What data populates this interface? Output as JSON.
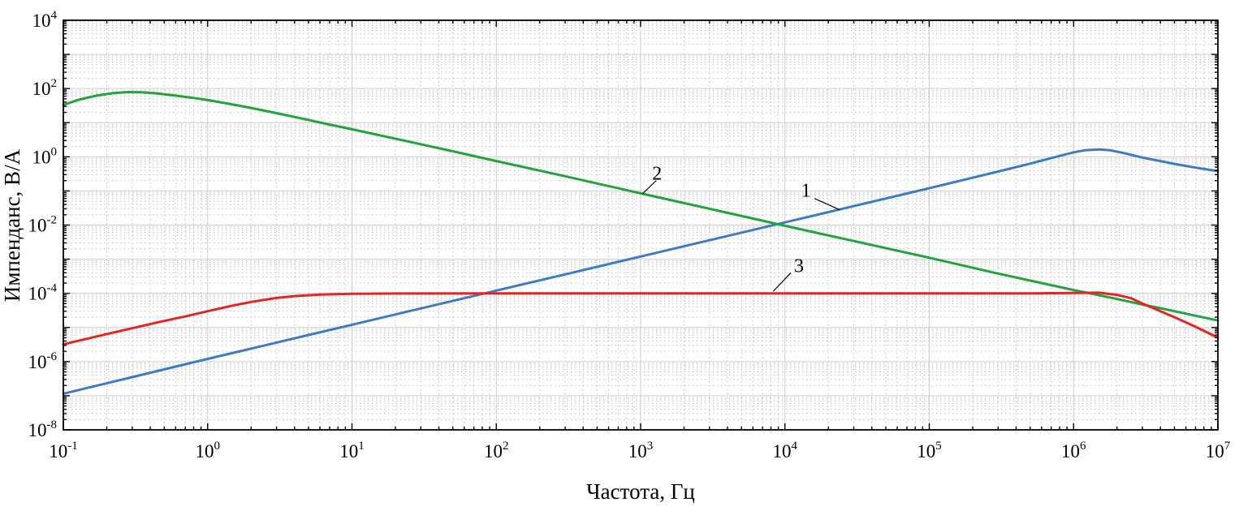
{
  "chart_data": {
    "type": "line",
    "title": "",
    "xlabel": "Частота, Гц",
    "ylabel": "Импенданс, В/А",
    "xscale": "log",
    "yscale": "log",
    "x_range_exp": [
      -1,
      7
    ],
    "y_range_exp": [
      -8,
      4
    ],
    "x_tick_exponents": [
      -1,
      0,
      1,
      2,
      3,
      4,
      5,
      6,
      7
    ],
    "y_tick_exponents": [
      -8,
      -6,
      -4,
      -2,
      0,
      2,
      4
    ],
    "grid": {
      "major": true,
      "minor": true,
      "major_color": "#cdcdcd",
      "minor_color": "#bfbfbf"
    },
    "axis_color": "#000000",
    "series": [
      {
        "name": "1",
        "description": "inductive impedance rising with frequency, self-resonance near 1.5e6 Hz",
        "color": "#3d7bc4",
        "points": [
          [
            0.1,
            1.15e-07
          ],
          [
            0.3,
            3.5e-07
          ],
          [
            1,
            1.2e-06
          ],
          [
            3,
            3.6e-06
          ],
          [
            10,
            1.2e-05
          ],
          [
            30,
            3.6e-05
          ],
          [
            100,
            0.00012
          ],
          [
            300,
            0.00036
          ],
          [
            1000,
            0.0012
          ],
          [
            3000,
            0.0036
          ],
          [
            10000,
            0.012
          ],
          [
            30000,
            0.036
          ],
          [
            100000,
            0.12
          ],
          [
            300000,
            0.37
          ],
          [
            500000,
            0.63
          ],
          [
            700000,
            0.92
          ],
          [
            1000000,
            1.35
          ],
          [
            1200000,
            1.55
          ],
          [
            1500000,
            1.65
          ],
          [
            1800000,
            1.55
          ],
          [
            2200000,
            1.3
          ],
          [
            3000000,
            0.95
          ],
          [
            4000000,
            0.75
          ],
          [
            5000000,
            0.62
          ],
          [
            7000000,
            0.48
          ],
          [
            10000000,
            0.38
          ]
        ]
      },
      {
        "name": "2",
        "description": "capacitive impedance falling with frequency, low-frequency peak near 0.3 Hz",
        "color": "#21a33e",
        "points": [
          [
            0.1,
            33
          ],
          [
            0.13,
            48
          ],
          [
            0.17,
            62
          ],
          [
            0.22,
            73
          ],
          [
            0.28,
            79
          ],
          [
            0.35,
            78
          ],
          [
            0.45,
            72
          ],
          [
            0.6,
            62
          ],
          [
            0.8,
            53
          ],
          [
            1,
            46
          ],
          [
            1.5,
            34
          ],
          [
            2,
            27
          ],
          [
            3,
            19
          ],
          [
            5,
            12
          ],
          [
            7,
            8.8
          ],
          [
            10,
            6.4
          ],
          [
            20,
            3.4
          ],
          [
            50,
            1.45
          ],
          [
            100,
            0.75
          ],
          [
            300,
            0.27
          ],
          [
            1000,
            0.085
          ],
          [
            3000,
            0.03
          ],
          [
            10000,
            0.0095
          ],
          [
            30000,
            0.0034
          ],
          [
            100000,
            0.0011
          ],
          [
            300000,
            0.00038
          ],
          [
            1000000,
            0.000125
          ],
          [
            1300000,
            0.0001
          ],
          [
            2000000,
            6.8e-05
          ],
          [
            3000000,
            4.7e-05
          ],
          [
            5000000,
            3e-05
          ],
          [
            7000000,
            2.2e-05
          ],
          [
            10000000,
            1.6e-05
          ]
        ]
      },
      {
        "name": "3",
        "description": "resistive impedance, flat plateau at 1e-4 from ~3 Hz to ~1.5e6 Hz",
        "color": "#e62420",
        "points": [
          [
            0.1,
            3.2e-06
          ],
          [
            0.15,
            4.8e-06
          ],
          [
            0.2,
            6.4e-06
          ],
          [
            0.3,
            9.5e-06
          ],
          [
            0.5,
            1.55e-05
          ],
          [
            0.7,
            2.1e-05
          ],
          [
            1,
            3e-05
          ],
          [
            1.5,
            4.4e-05
          ],
          [
            2,
            5.6e-05
          ],
          [
            3,
            7.3e-05
          ],
          [
            4,
            8.3e-05
          ],
          [
            6,
            9.2e-05
          ],
          [
            10,
            9.7e-05
          ],
          [
            20,
            9.9e-05
          ],
          [
            100,
            0.0001
          ],
          [
            1000,
            0.0001
          ],
          [
            10000,
            0.0001
          ],
          [
            100000,
            0.0001
          ],
          [
            500000,
            0.0001
          ],
          [
            1000000,
            0.000102
          ],
          [
            1500000,
            0.000104
          ],
          [
            2000000,
            9e-05
          ],
          [
            2500000,
            7.2e-05
          ],
          [
            3000000,
            5e-05
          ],
          [
            4000000,
            3e-05
          ],
          [
            5000000,
            2e-05
          ],
          [
            7000000,
            1.05e-05
          ],
          [
            10000000,
            5e-06
          ]
        ]
      }
    ],
    "annotations": [
      {
        "text": "1",
        "x": 14000,
        "y": 0.105,
        "line": {
          "x1": 16000,
          "y1": 0.06,
          "x2": 24000,
          "y2": 0.028
        }
      },
      {
        "text": "2",
        "x": 1300,
        "y": 0.33,
        "line": {
          "x1": 1280,
          "y1": 0.2,
          "x2": 1030,
          "y2": 0.082
        }
      },
      {
        "text": "3",
        "x": 12500,
        "y": 0.00065,
        "line": {
          "x1": 11000,
          "y1": 0.0004,
          "x2": 8300,
          "y2": 0.000115
        }
      }
    ]
  }
}
